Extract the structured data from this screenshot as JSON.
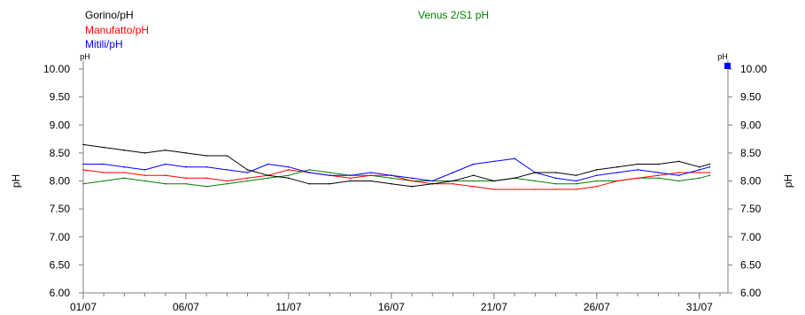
{
  "chart_data": {
    "type": "line",
    "title": "",
    "ylabel_left": "pH",
    "ylabel_right": "pH",
    "unit_left": "pH",
    "unit_right": "pH",
    "ylim": [
      6.0,
      10.0
    ],
    "yticks": [
      "10.00",
      "9.50",
      "9.00",
      "8.50",
      "8.00",
      "7.50",
      "7.00",
      "6.50",
      "6.00"
    ],
    "yticks_right": [
      "10.00",
      "9.50",
      "9.00",
      "8.50",
      "8.00",
      "7.50",
      "7.00",
      "6.50",
      "6.00"
    ],
    "ytick_values": [
      10.0,
      9.5,
      9.0,
      8.5,
      8.0,
      7.5,
      7.0,
      6.5,
      6.0
    ],
    "xlim_days": [
      0,
      31
    ],
    "xticks": [
      {
        "day": 0,
        "label": "01/07"
      },
      {
        "day": 5,
        "label": "06/07"
      },
      {
        "day": 10,
        "label": "11/07"
      },
      {
        "day": 15,
        "label": "16/07"
      },
      {
        "day": 20,
        "label": "21/07"
      },
      {
        "day": 25,
        "label": "26/07"
      },
      {
        "day": 30,
        "label": "31/07"
      }
    ],
    "series": [
      {
        "name": "Gorino/pH",
        "color": "#000000",
        "x": [
          0,
          1,
          2,
          3,
          4,
          5,
          6,
          7,
          8,
          9,
          10,
          11,
          12,
          13,
          14,
          15,
          16,
          17,
          18,
          19,
          20,
          21,
          22,
          23,
          24,
          25,
          26,
          27,
          28,
          29,
          30,
          30.5
        ],
        "y": [
          8.65,
          8.6,
          8.55,
          8.5,
          8.55,
          8.5,
          8.45,
          8.45,
          8.2,
          8.1,
          8.05,
          7.95,
          7.95,
          8.0,
          8.0,
          7.95,
          7.9,
          7.95,
          8.0,
          8.1,
          8.0,
          8.05,
          8.15,
          8.15,
          8.1,
          8.2,
          8.25,
          8.3,
          8.3,
          8.35,
          8.25,
          8.3
        ]
      },
      {
        "name": "Manufatto/pH",
        "color": "#ff0000",
        "x": [
          0,
          1,
          2,
          3,
          4,
          5,
          6,
          7,
          8,
          9,
          10,
          11,
          12,
          13,
          14,
          15,
          16,
          17,
          18,
          19,
          20,
          21,
          22,
          23,
          24,
          25,
          26,
          27,
          28,
          29,
          30,
          30.5
        ],
        "y": [
          8.2,
          8.15,
          8.15,
          8.1,
          8.1,
          8.05,
          8.05,
          8.0,
          8.05,
          8.1,
          8.2,
          8.15,
          8.1,
          8.05,
          8.1,
          8.1,
          8.0,
          7.95,
          7.95,
          7.9,
          7.85,
          7.85,
          7.85,
          7.85,
          7.85,
          7.9,
          8.0,
          8.05,
          8.1,
          8.15,
          8.15,
          8.15
        ]
      },
      {
        "name": "Mitili/pH",
        "color": "#0000ff",
        "x": [
          0,
          1,
          2,
          3,
          4,
          5,
          6,
          7,
          8,
          9,
          10,
          11,
          12,
          13,
          14,
          15,
          16,
          17,
          18,
          19,
          20,
          21,
          22,
          23,
          24,
          25,
          26,
          27,
          28,
          29,
          30,
          30.5
        ],
        "y": [
          8.3,
          8.3,
          8.25,
          8.2,
          8.3,
          8.25,
          8.25,
          8.2,
          8.15,
          8.3,
          8.25,
          8.15,
          8.1,
          8.1,
          8.15,
          8.1,
          8.05,
          8.0,
          8.15,
          8.3,
          8.35,
          8.4,
          8.15,
          8.05,
          8.0,
          8.1,
          8.15,
          8.2,
          8.15,
          8.1,
          8.2,
          8.25
        ]
      },
      {
        "name": "Venus 2/S1 pH",
        "color": "#008000",
        "x": [
          0,
          1,
          2,
          3,
          4,
          5,
          6,
          7,
          8,
          9,
          10,
          11,
          12,
          13,
          14,
          15,
          16,
          17,
          18,
          19,
          20,
          21,
          22,
          23,
          24,
          25,
          26,
          27,
          28,
          29,
          30,
          30.5
        ],
        "y": [
          7.95,
          8.0,
          8.05,
          8.0,
          7.95,
          7.95,
          7.9,
          7.95,
          8.0,
          8.05,
          8.1,
          8.2,
          8.15,
          8.1,
          8.1,
          8.05,
          8.0,
          8.0,
          8.0,
          8.0,
          8.0,
          8.05,
          8.0,
          7.95,
          7.95,
          8.0,
          8.0,
          8.05,
          8.05,
          8.0,
          8.05,
          8.1
        ]
      }
    ]
  }
}
